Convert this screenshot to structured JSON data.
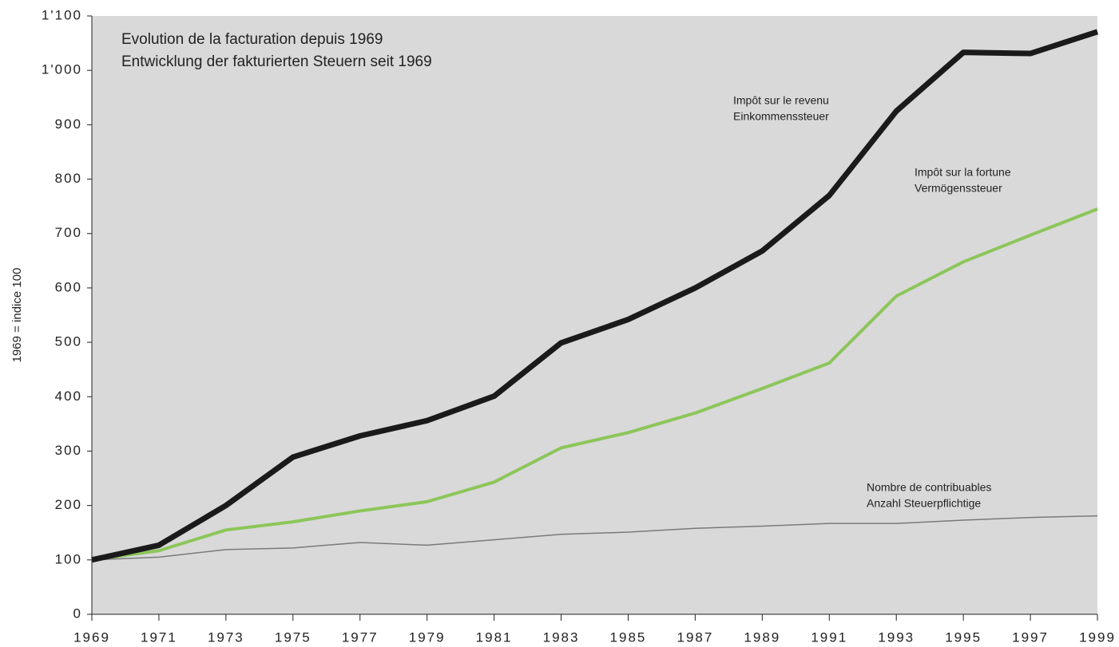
{
  "chart_data": {
    "type": "line",
    "title": [
      "Evolution de la facturation depuis 1969",
      "Entwicklung der fakturierten Steuern seit 1969"
    ],
    "ylabel": "1969  =  indice 100",
    "x": [
      1969,
      1971,
      1973,
      1975,
      1977,
      1979,
      1981,
      1983,
      1985,
      1987,
      1989,
      1991,
      1993,
      1995,
      1997,
      1999
    ],
    "xlim": [
      1969,
      1999
    ],
    "xticks": [
      1969,
      1971,
      1973,
      1975,
      1977,
      1979,
      1981,
      1983,
      1985,
      1987,
      1989,
      1991,
      1993,
      1995,
      1997,
      1999
    ],
    "ylim": [
      0,
      1100
    ],
    "yticks": [
      0,
      100,
      200,
      300,
      400,
      500,
      600,
      700,
      800,
      900,
      {
        "value": 1000,
        "label": "1'000"
      },
      {
        "value": 1100,
        "label": "1'100"
      }
    ],
    "grid": false,
    "series": [
      {
        "name": "Impôt sur le revenu",
        "name_de": "Einkommenssteuer",
        "color": "#1a1a1a",
        "width": 7,
        "values": [
          100,
          127,
          200,
          289,
          328,
          356,
          401,
          499,
          542,
          600,
          668,
          770,
          925,
          1033,
          1031,
          1071
        ]
      },
      {
        "name": "Impôt sur la fortune",
        "name_de": "Vermögenssteuer",
        "color": "#8cc65a",
        "width": 4,
        "values": [
          100,
          117,
          155,
          170,
          190,
          207,
          243,
          306,
          334,
          370,
          415,
          462,
          585,
          648,
          697,
          745
        ]
      },
      {
        "name": "Nombre de contribuables",
        "name_de": "Anzahl Steuerpflichtige",
        "color": "#7a7a7a",
        "width": 1.5,
        "values": [
          100,
          105,
          119,
          122,
          132,
          127,
          137,
          147,
          151,
          158,
          162,
          167,
          167,
          173,
          178,
          181
        ]
      }
    ]
  }
}
